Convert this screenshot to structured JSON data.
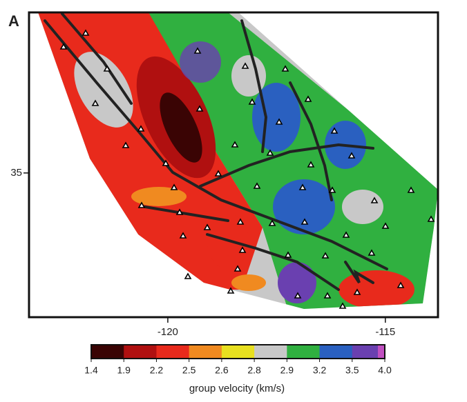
{
  "map": {
    "panel_label": "A",
    "xlim": [
      -123.19,
      -113.79
    ],
    "ylim": [
      32.35,
      37.95
    ],
    "xticks": [
      -120,
      -115
    ],
    "yticks": [
      35
    ],
    "colorbar": {
      "title": "group velocity (km/s)",
      "ticks": [
        1.4,
        1.9,
        2.2,
        2.5,
        2.6,
        2.8,
        2.9,
        3.2,
        3.5,
        {
          "value": 4,
          "label": "4.0"
        }
      ],
      "colors": [
        "#3a0404",
        "#b01010",
        "#e82a1c",
        "#f08a20",
        "#e8e020",
        "#c8c8c8",
        "#30b040",
        "#2a60c0",
        "#6a40b0"
      ],
      "end_color": "#c050c0"
    }
  }
}
